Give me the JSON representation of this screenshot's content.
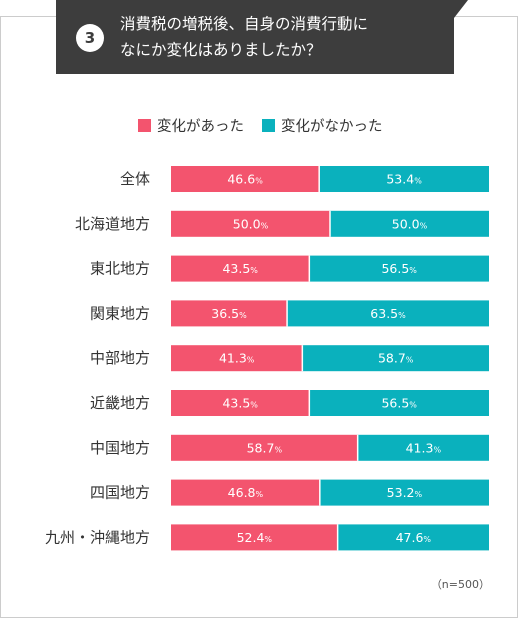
{
  "question": {
    "number": "3",
    "title_line1": "消費税の増税後、自身の消費行動に",
    "title_line2": "なにか変化はありましたか？"
  },
  "note": "（n=500）",
  "colors": {
    "series1": "#f3546e",
    "series2": "#0ab1bd",
    "title_bg": "#3d3d3d"
  },
  "chart_data": {
    "type": "bar",
    "orientation": "horizontal",
    "stacked": true,
    "percent_suffix": "%",
    "categories": [
      "全体",
      "北海道地方",
      "東北地方",
      "関東地方",
      "中部地方",
      "近畿地方",
      "中国地方",
      "四国地方",
      "九州・沖縄地方"
    ],
    "series": [
      {
        "name": "変化があった",
        "values": [
          46.6,
          50.0,
          43.5,
          36.5,
          41.3,
          43.5,
          58.7,
          46.8,
          52.4
        ]
      },
      {
        "name": "変化がなかった",
        "values": [
          53.4,
          50.0,
          56.5,
          63.5,
          58.7,
          56.5,
          41.3,
          53.2,
          47.6
        ]
      }
    ],
    "xlim": [
      0,
      100
    ],
    "legend_position": "top-center"
  }
}
